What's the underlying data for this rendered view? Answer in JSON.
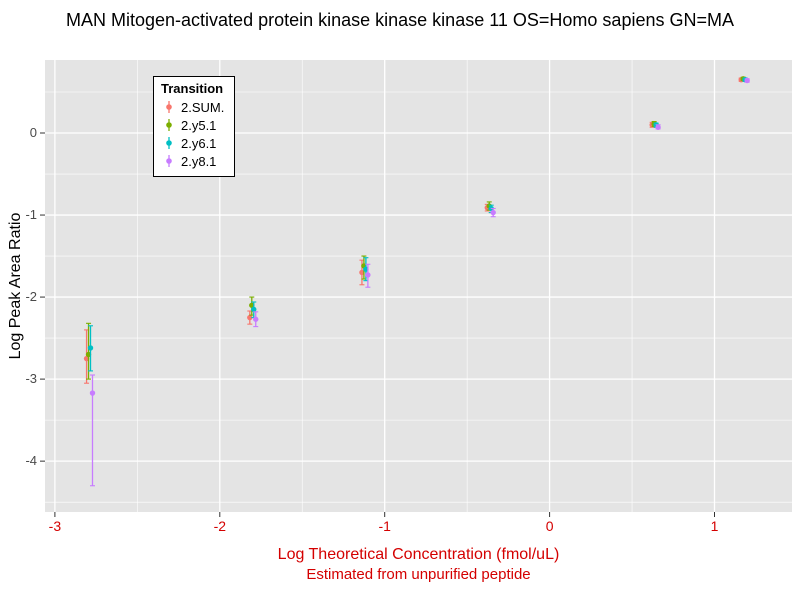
{
  "chart_data": {
    "type": "scatter",
    "title": "MAN Mitogen-activated protein kinase kinase kinase 11 OS=Homo sapiens GN=MA",
    "ylabel": "Log Peak Area Ratio",
    "xlabel_line1": "Log Theoretical Concentration (fmol/uL)",
    "xlabel_line2": "Estimated from unpurified peptide",
    "xlim": [
      -3.06,
      1.47
    ],
    "ylim": [
      -4.62,
      0.89
    ],
    "x_ticks": [
      -3,
      -2,
      -1,
      0,
      1
    ],
    "y_ticks": [
      0,
      -1,
      -2,
      -3,
      -4
    ],
    "grid": true,
    "legend": {
      "title": "Transition",
      "position": "top-left-inside"
    },
    "colors": {
      "panel_bg": "#E4E4E4",
      "grid": "#FFFFFF",
      "x_text": "#D40000",
      "y_tick_text": "#4A4A4A",
      "tick_mark": "#333333",
      "title_text": "#000000",
      "legend_bg": "#FFFFFF",
      "legend_border": "#000000"
    },
    "series": [
      {
        "name": "2.SUM.",
        "color": "#F8766D",
        "points": [
          {
            "x": -2.79,
            "y": -2.75,
            "ylo": -3.05,
            "yhi": -2.4
          },
          {
            "x": -1.8,
            "y": -2.25,
            "ylo": -2.33,
            "yhi": -2.17
          },
          {
            "x": -1.12,
            "y": -1.7,
            "ylo": -1.85,
            "yhi": -1.55
          },
          {
            "x": -0.36,
            "y": -0.91,
            "ylo": -0.95,
            "yhi": -0.87
          },
          {
            "x": 0.64,
            "y": 0.1,
            "ylo": 0.07,
            "yhi": 0.13
          },
          {
            "x": 1.18,
            "y": 0.65,
            "ylo": 0.63,
            "yhi": 0.67
          }
        ]
      },
      {
        "name": "2.y5.1",
        "color": "#7CAE00",
        "points": [
          {
            "x": -2.79,
            "y": -2.7,
            "ylo": -3.0,
            "yhi": -2.32
          },
          {
            "x": -1.8,
            "y": -2.1,
            "ylo": -2.22,
            "yhi": -2.0
          },
          {
            "x": -1.12,
            "y": -1.62,
            "ylo": -1.78,
            "yhi": -1.5
          },
          {
            "x": -0.36,
            "y": -0.89,
            "ylo": -0.94,
            "yhi": -0.84
          },
          {
            "x": 0.64,
            "y": 0.11,
            "ylo": 0.08,
            "yhi": 0.14
          },
          {
            "x": 1.18,
            "y": 0.66,
            "ylo": 0.64,
            "yhi": 0.68
          }
        ]
      },
      {
        "name": "2.y6.1",
        "color": "#00BFC4",
        "points": [
          {
            "x": -2.79,
            "y": -2.62,
            "ylo": -2.9,
            "yhi": -2.35
          },
          {
            "x": -1.8,
            "y": -2.15,
            "ylo": -2.25,
            "yhi": -2.06
          },
          {
            "x": -1.12,
            "y": -1.66,
            "ylo": -1.8,
            "yhi": -1.52
          },
          {
            "x": -0.36,
            "y": -0.92,
            "ylo": -0.97,
            "yhi": -0.88
          },
          {
            "x": 0.64,
            "y": 0.1,
            "ylo": 0.07,
            "yhi": 0.12
          },
          {
            "x": 1.18,
            "y": 0.65,
            "ylo": 0.63,
            "yhi": 0.67
          }
        ]
      },
      {
        "name": "2.y8.1",
        "color": "#C77CFF",
        "points": [
          {
            "x": -2.79,
            "y": -3.17,
            "ylo": -4.3,
            "yhi": -2.95
          },
          {
            "x": -1.8,
            "y": -2.27,
            "ylo": -2.36,
            "yhi": -2.18
          },
          {
            "x": -1.12,
            "y": -1.73,
            "ylo": -1.88,
            "yhi": -1.6
          },
          {
            "x": -0.36,
            "y": -0.97,
            "ylo": -1.02,
            "yhi": -0.92
          },
          {
            "x": 0.64,
            "y": 0.07,
            "ylo": 0.05,
            "yhi": 0.1
          },
          {
            "x": 1.18,
            "y": 0.64,
            "ylo": 0.62,
            "yhi": 0.66
          }
        ]
      }
    ]
  }
}
